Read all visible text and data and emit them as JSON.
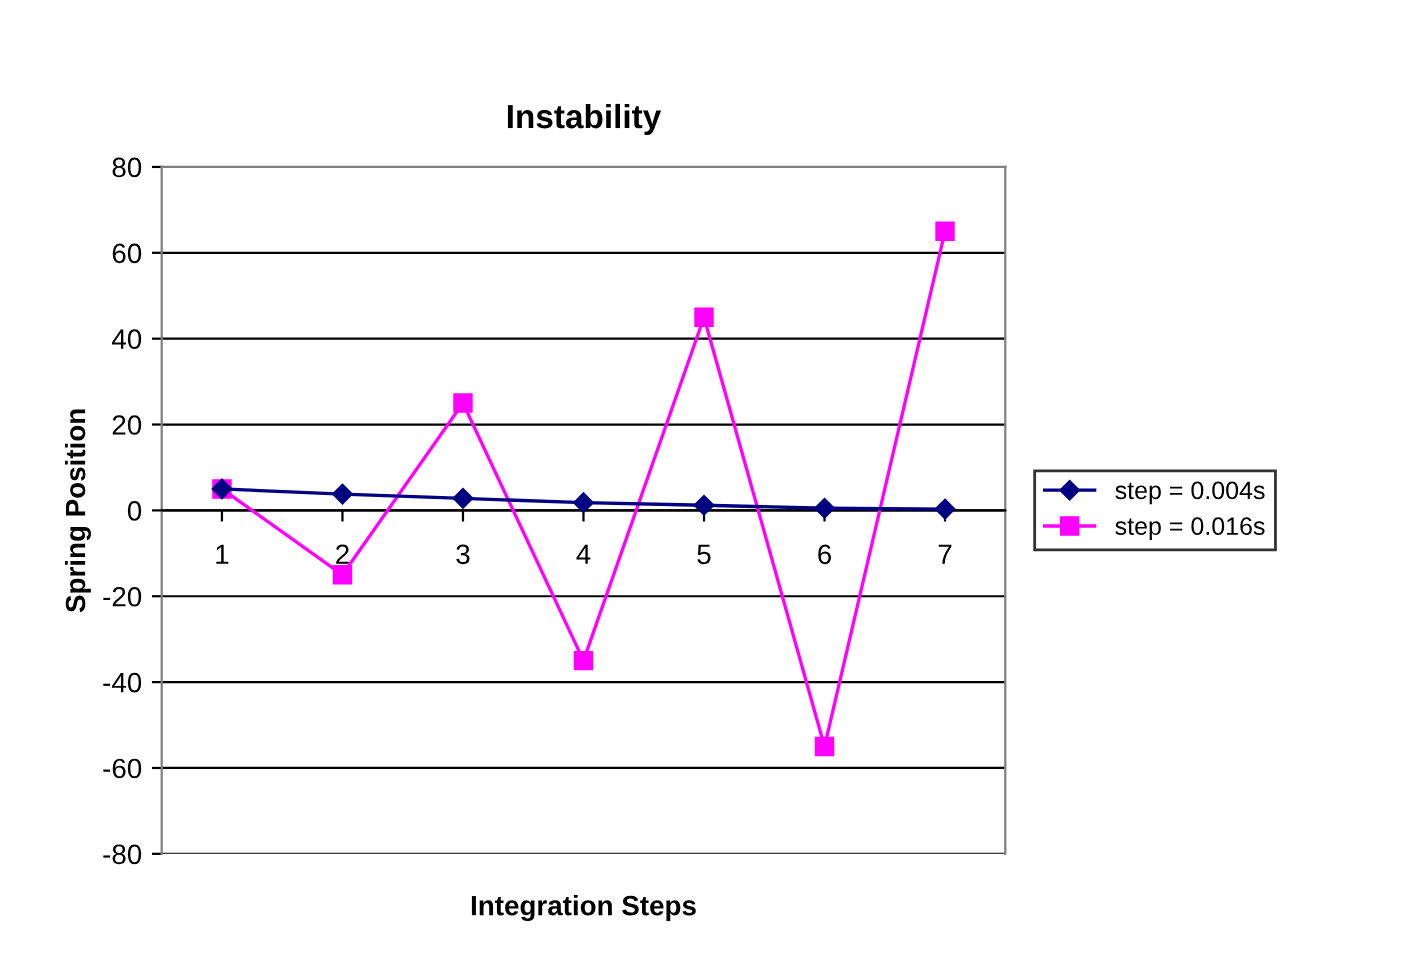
{
  "chart_data": {
    "type": "line",
    "title": "Instability",
    "xlabel": "Integration Steps",
    "ylabel": "Spring Position",
    "categories": [
      "1",
      "2",
      "3",
      "4",
      "5",
      "6",
      "7"
    ],
    "series": [
      {
        "name": "step = 0.004s",
        "color": "#000080",
        "marker": "diamond",
        "values": [
          5,
          3.8,
          2.8,
          1.8,
          1.2,
          0.5,
          0.3
        ]
      },
      {
        "name": "step = 0.016s",
        "color": "#ff00ff",
        "marker": "square",
        "values": [
          5,
          -15,
          25,
          -35,
          45,
          -55,
          65
        ]
      }
    ],
    "ylim": [
      -80,
      80
    ],
    "yticks": [
      -80,
      -60,
      -40,
      -20,
      0,
      20,
      40,
      60,
      80
    ],
    "grid": "y",
    "legend": "right",
    "line_style": "solid"
  }
}
